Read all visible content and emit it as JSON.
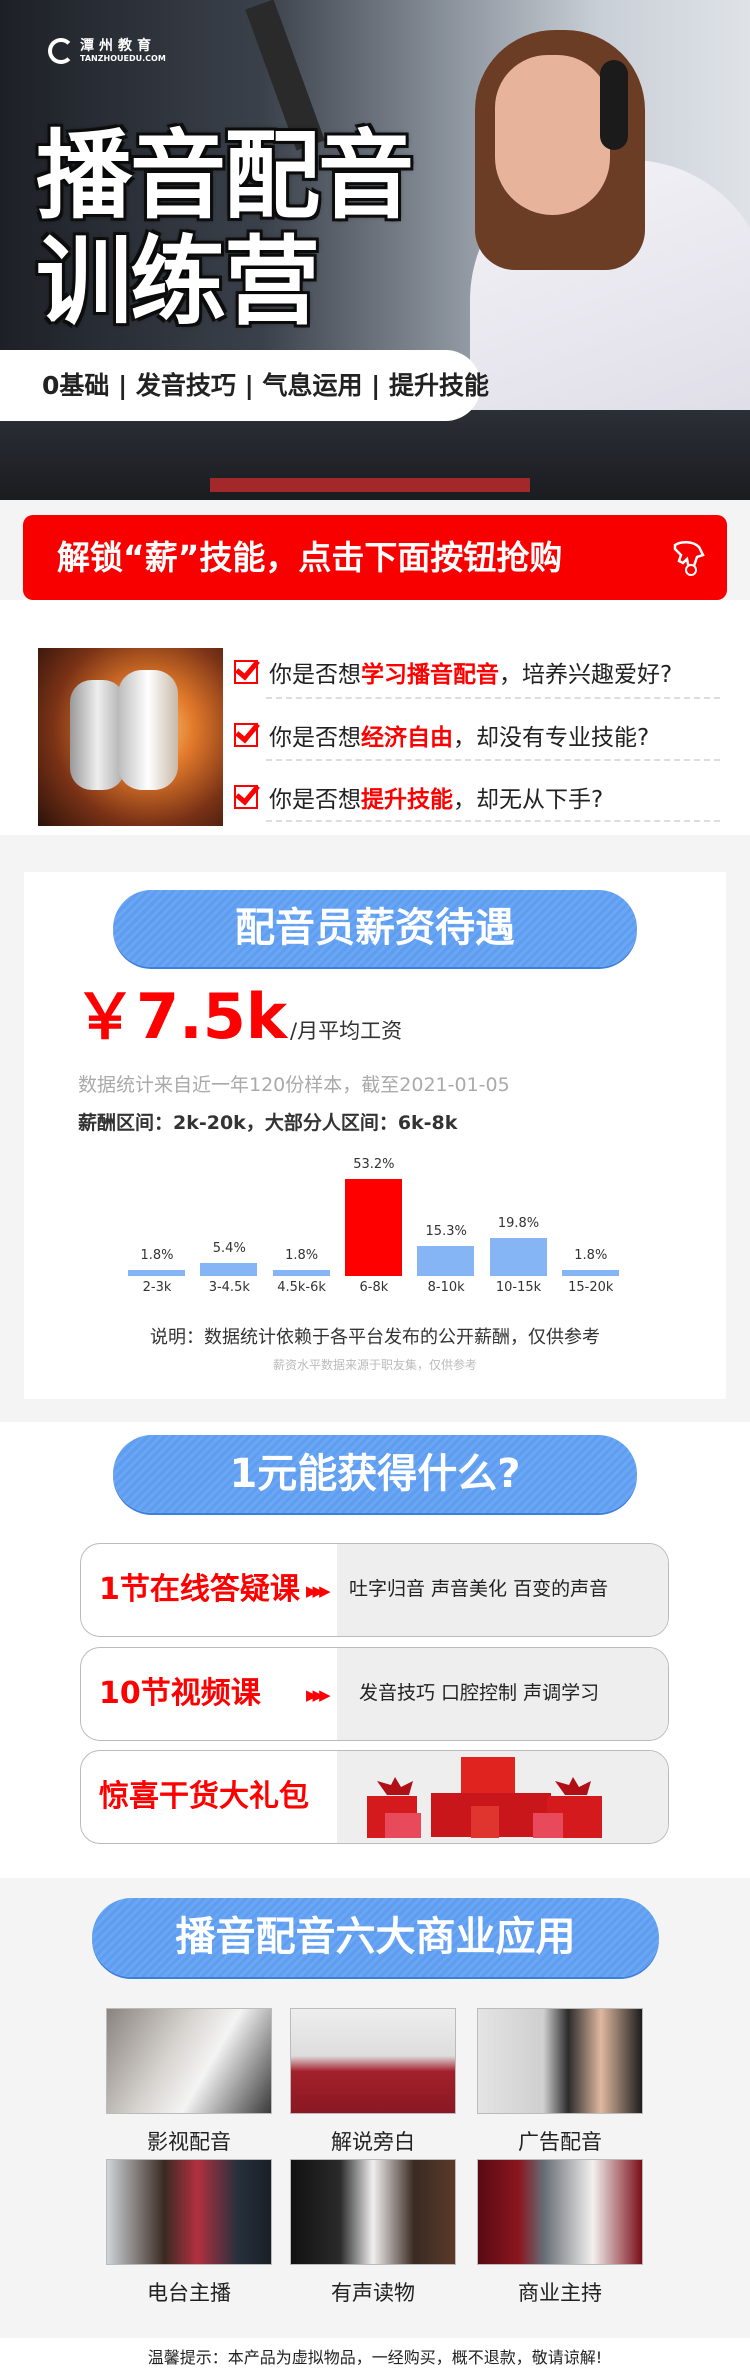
{
  "hero": {
    "logo_cn": "潭州教育",
    "logo_en": "TANZHOUEDU.COM",
    "title_line1": "播音配音",
    "title_line2": "训练营",
    "tagline": "0基础 | 发音技巧 | 气息运用 | 提升技能"
  },
  "cta": {
    "label": "解锁“薪”技能，点击下面按钮抢购",
    "icon": "pointing-hand-icon"
  },
  "questions": [
    {
      "prefix": "你是否想",
      "highlight": "学习播音配音",
      "suffix": "，培养兴趣爱好?"
    },
    {
      "prefix": "你是否想",
      "highlight": "经济自由",
      "suffix": "，却没有专业技能?"
    },
    {
      "prefix": "你是否想",
      "highlight": "提升技能",
      "suffix": "，却无从下手?"
    }
  ],
  "salary": {
    "title": "配音员薪资待遇",
    "amount": "￥7.5k",
    "amount_unit": "/月平均工资",
    "stats_note": "数据统计来自近一年120份样本，截至2021-01-05",
    "range_note": "薪酬区间：2k-20k，大部分人区间：6k-8k",
    "explain": "说明：数据统计依赖于各平台发布的公开薪酬，仅供参考",
    "source": "薪资水平数据来源于职友集，仅供参考"
  },
  "chart_data": {
    "type": "bar",
    "categories": [
      "2-3k",
      "3-4.5k",
      "4.5k-6k",
      "6-8k",
      "8-10k",
      "10-15k",
      "15-20k"
    ],
    "values": [
      1.8,
      5.4,
      1.8,
      53.2,
      15.3,
      19.8,
      1.8
    ],
    "value_labels": [
      "1.8%",
      "5.4%",
      "1.8%",
      "53.2%",
      "15.3%",
      "19.8%",
      "1.8%"
    ],
    "unit": "%",
    "highlight_category": "6-8k",
    "colors": {
      "default": "#86b5f5",
      "highlight": "#ff0000"
    },
    "grid": false
  },
  "offer": {
    "title": "1元能获得什么?",
    "items": [
      {
        "label": "1节在线答疑课",
        "desc": "吐字归音  声音美化  百变的声音"
      },
      {
        "label": "10节视频课",
        "desc": "发音技巧  口腔控制  声调学习"
      },
      {
        "label": "惊喜干货大礼包",
        "desc": ""
      }
    ]
  },
  "apps": {
    "title": "播音配音六大商业应用",
    "items": [
      {
        "label": "影视配音"
      },
      {
        "label": "解说旁白"
      },
      {
        "label": "广告配音"
      },
      {
        "label": "电台主播"
      },
      {
        "label": "有声读物"
      },
      {
        "label": "商业主持"
      }
    ]
  },
  "footer": {
    "notice": "温馨提示：本产品为虚拟物品，一经购买，概不退款，敬请谅解!"
  },
  "colors": {
    "accent_red": "#f80000",
    "accent_blue": "#5e9df0"
  }
}
